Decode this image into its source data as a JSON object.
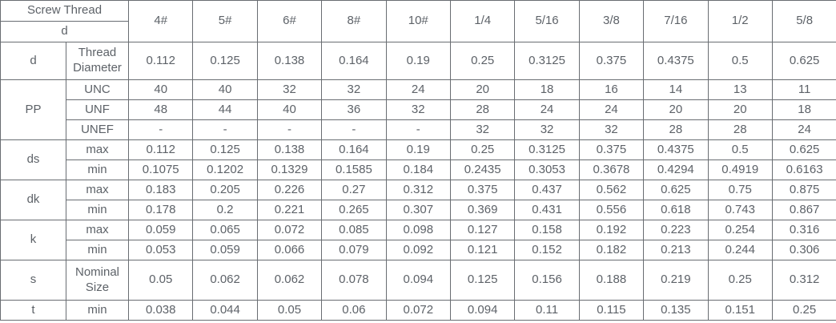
{
  "table": {
    "corner": {
      "top_label": "Screw Thread",
      "bottom_label": "d"
    },
    "size_headers": [
      "4#",
      "5#",
      "6#",
      "8#",
      "10#",
      "1/4",
      "5/16",
      "3/8",
      "7/16",
      "1/2",
      "5/8"
    ],
    "rows": [
      {
        "group": "d",
        "label": "Thread Diameter",
        "tall": true,
        "values": [
          "0.112",
          "0.125",
          "0.138",
          "0.164",
          "0.19",
          "0.25",
          "0.3125",
          "0.375",
          "0.4375",
          "0.5",
          "0.625"
        ]
      },
      {
        "group": "PP",
        "label": "UNC",
        "values": [
          "40",
          "40",
          "32",
          "32",
          "24",
          "20",
          "18",
          "16",
          "14",
          "13",
          "11"
        ]
      },
      {
        "group": "PP",
        "label": "UNF",
        "values": [
          "48",
          "44",
          "40",
          "36",
          "32",
          "28",
          "24",
          "24",
          "20",
          "20",
          "18"
        ]
      },
      {
        "group": "PP",
        "label": "UNEF",
        "values": [
          "-",
          "-",
          "-",
          "-",
          "-",
          "32",
          "32",
          "32",
          "28",
          "28",
          "24"
        ]
      },
      {
        "group": "ds",
        "label": "max",
        "values": [
          "0.112",
          "0.125",
          "0.138",
          "0.164",
          "0.19",
          "0.25",
          "0.3125",
          "0.375",
          "0.4375",
          "0.5",
          "0.625"
        ]
      },
      {
        "group": "ds",
        "label": "min",
        "values": [
          "0.1075",
          "0.1202",
          "0.1329",
          "0.1585",
          "0.184",
          "0.2435",
          "0.3053",
          "0.3678",
          "0.4294",
          "0.4919",
          "0.6163"
        ]
      },
      {
        "group": "dk",
        "label": "max",
        "values": [
          "0.183",
          "0.205",
          "0.226",
          "0.27",
          "0.312",
          "0.375",
          "0.437",
          "0.562",
          "0.625",
          "0.75",
          "0.875"
        ]
      },
      {
        "group": "dk",
        "label": "min",
        "values": [
          "0.178",
          "0.2",
          "0.221",
          "0.265",
          "0.307",
          "0.369",
          "0.431",
          "0.556",
          "0.618",
          "0.743",
          "0.867"
        ]
      },
      {
        "group": "k",
        "label": "max",
        "values": [
          "0.059",
          "0.065",
          "0.072",
          "0.085",
          "0.098",
          "0.127",
          "0.158",
          "0.192",
          "0.223",
          "0.254",
          "0.316"
        ]
      },
      {
        "group": "k",
        "label": "min",
        "values": [
          "0.053",
          "0.059",
          "0.066",
          "0.079",
          "0.092",
          "0.121",
          "0.152",
          "0.182",
          "0.213",
          "0.244",
          "0.306"
        ]
      },
      {
        "group": "s",
        "label": "Nominal Size",
        "tall2": true,
        "values": [
          "0.05",
          "0.062",
          "0.062",
          "0.078",
          "0.094",
          "0.125",
          "0.156",
          "0.188",
          "0.219",
          "0.25",
          "0.312"
        ]
      },
      {
        "group": "t",
        "label": "min",
        "values": [
          "0.038",
          "0.044",
          "0.05",
          "0.06",
          "0.072",
          "0.094",
          "0.11",
          "0.115",
          "0.135",
          "0.151",
          "0.25"
        ]
      }
    ],
    "colors": {
      "text": "#5d6268",
      "border": "#696d72",
      "background": "#ffffff"
    }
  }
}
